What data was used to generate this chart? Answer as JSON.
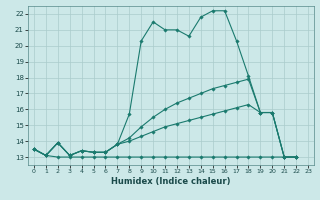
{
  "xlabel": "Humidex (Indice chaleur)",
  "bg_color": "#cce8e8",
  "grid_color": "#aacccc",
  "line_color": "#1a7a6e",
  "xlim": [
    -0.5,
    23.5
  ],
  "ylim": [
    12.5,
    22.5
  ],
  "xticks": [
    0,
    1,
    2,
    3,
    4,
    5,
    6,
    7,
    8,
    9,
    10,
    11,
    12,
    13,
    14,
    15,
    16,
    17,
    18,
    19,
    20,
    21,
    22,
    23
  ],
  "yticks": [
    13,
    14,
    15,
    16,
    17,
    18,
    19,
    20,
    21,
    22
  ],
  "line1_y": [
    13.5,
    13.1,
    13.9,
    13.1,
    13.4,
    13.3,
    13.3,
    13.8,
    15.7,
    20.3,
    21.5,
    21.0,
    21.0,
    20.6,
    21.8,
    22.2,
    22.2,
    20.3,
    18.1,
    15.8,
    15.8,
    13.0,
    13.0,
    null
  ],
  "line2_y": [
    13.5,
    13.1,
    13.9,
    13.1,
    13.4,
    13.3,
    13.3,
    13.8,
    14.0,
    14.3,
    14.6,
    14.9,
    15.1,
    15.3,
    15.5,
    15.7,
    15.9,
    16.1,
    16.3,
    15.8,
    15.8,
    13.0,
    13.0,
    null
  ],
  "line3_y": [
    13.5,
    13.1,
    13.0,
    13.0,
    13.0,
    13.0,
    13.0,
    13.0,
    13.0,
    13.0,
    13.0,
    13.0,
    13.0,
    13.0,
    13.0,
    13.0,
    13.0,
    13.0,
    13.0,
    13.0,
    13.0,
    13.0,
    13.0,
    null
  ],
  "line4_y": [
    13.5,
    13.1,
    13.9,
    13.1,
    13.4,
    13.3,
    13.3,
    13.8,
    14.2,
    14.9,
    15.5,
    16.0,
    16.4,
    16.7,
    17.0,
    17.3,
    17.5,
    17.7,
    17.9,
    15.8,
    15.8,
    13.0,
    13.0,
    null
  ]
}
